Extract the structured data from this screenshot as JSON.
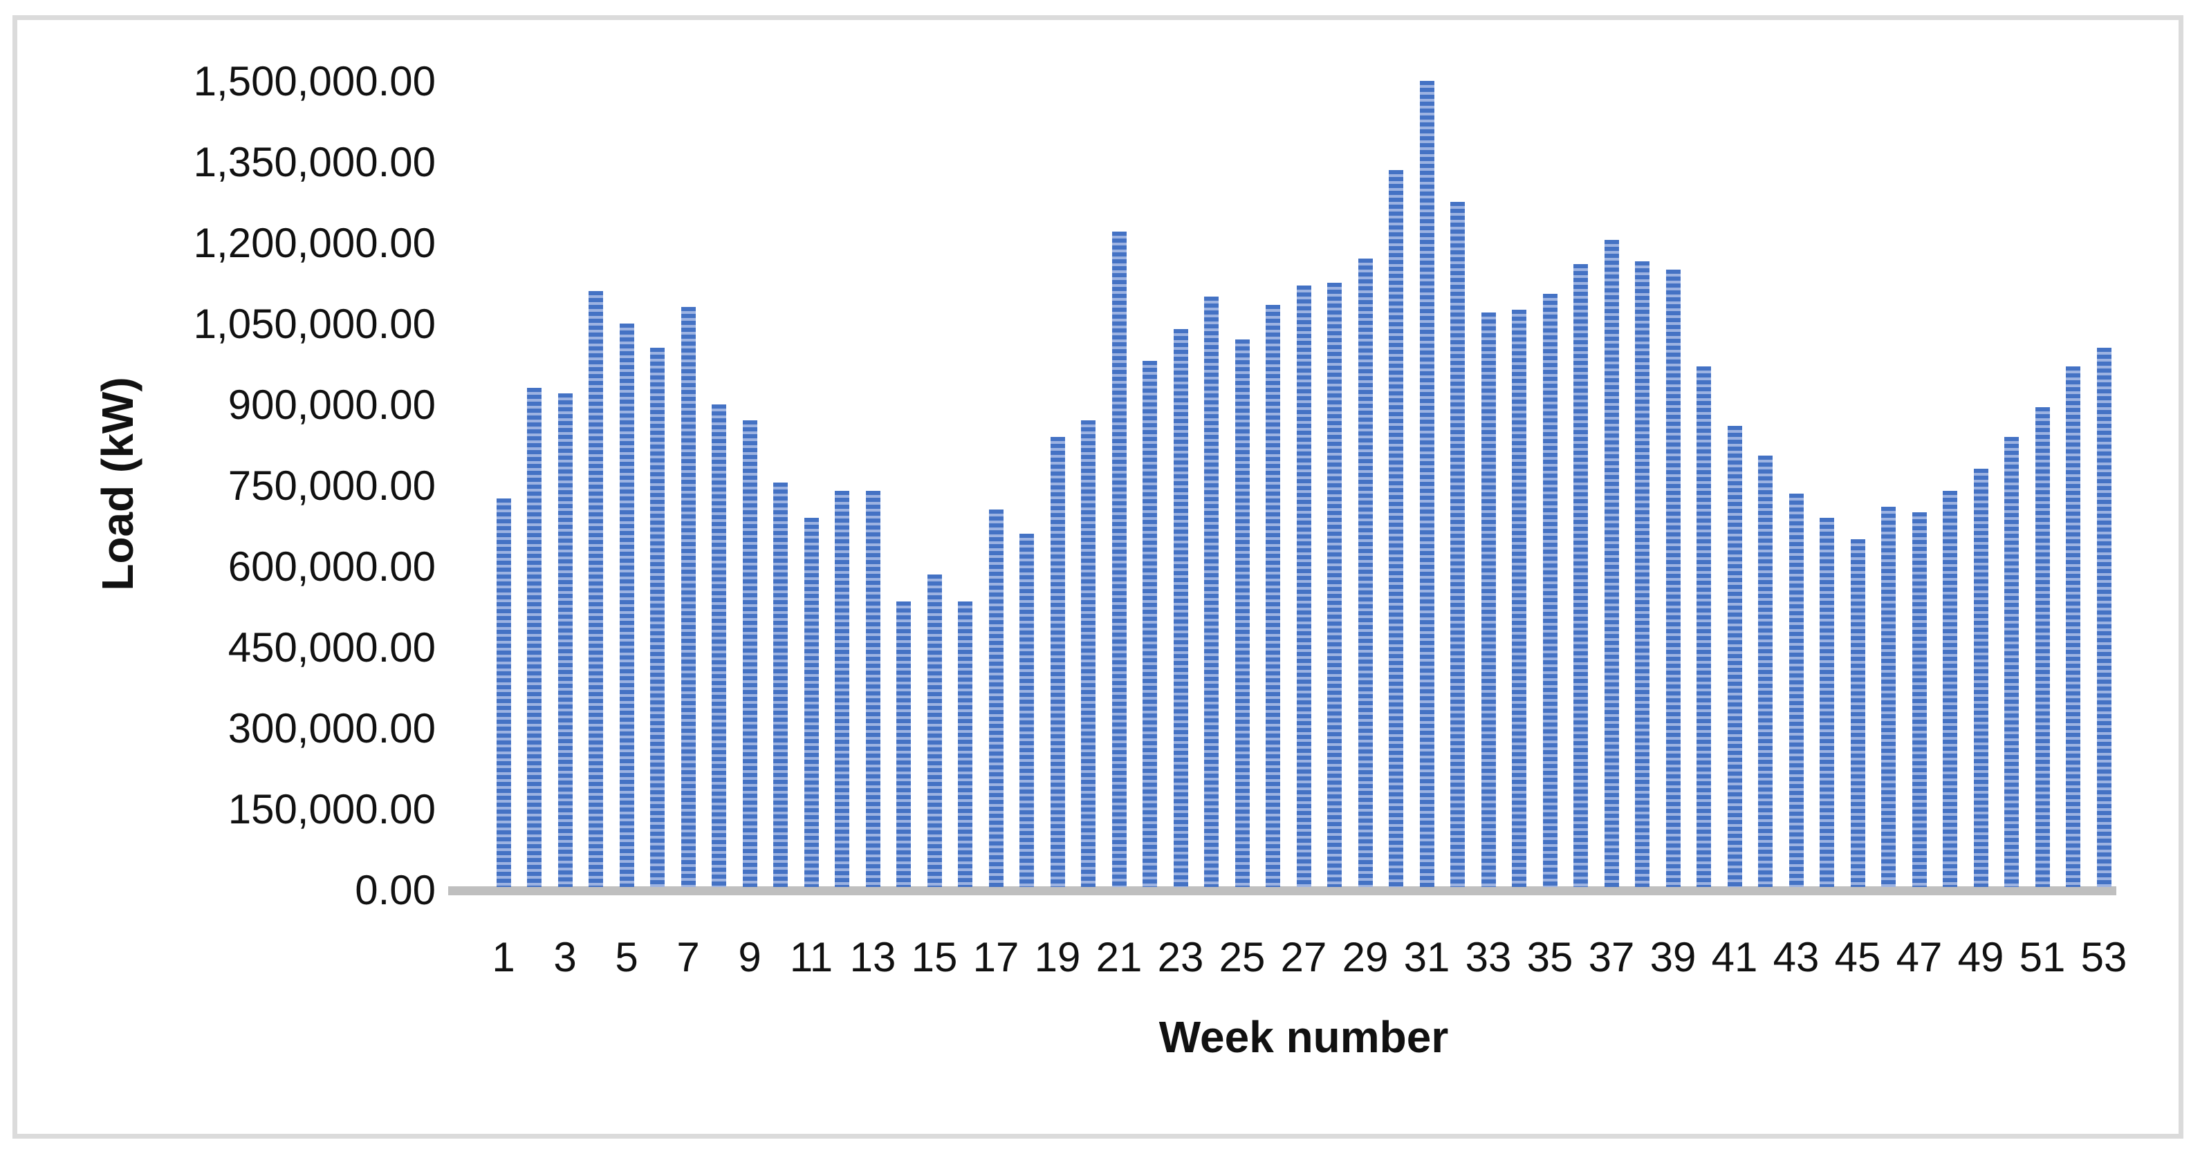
{
  "figure": {
    "y_axis_title": "Load (kW)",
    "x_axis_title": "Week number"
  },
  "colors": {
    "bar_stripe_dark": "#4472C4",
    "bar_stripe_light": "#9DB3E2",
    "axis_line": "#BFBFBF",
    "text": "#111111",
    "frame_border": "#DBDBDB",
    "background": "#FFFFFF"
  },
  "y_axis": {
    "tick_labels_top_to_bottom": [
      "1,500,000.00",
      "1,350,000.00",
      "1,200,000.00",
      "1,050,000.00",
      "900,000.00",
      "750,000.00",
      "600,000.00",
      "450,000.00",
      "300,000.00",
      "150,000.00",
      "0.00"
    ]
  },
  "x_axis": {
    "shown_tick_labels": [
      "1",
      "3",
      "5",
      "7",
      "9",
      "11",
      "13",
      "15",
      "17",
      "19",
      "21",
      "23",
      "25",
      "27",
      "29",
      "31",
      "33",
      "35",
      "37",
      "39",
      "41",
      "43",
      "45",
      "47",
      "49",
      "51",
      "53"
    ]
  },
  "chart_data": {
    "type": "bar",
    "title": "",
    "xlabel": "Week number",
    "ylabel": "Load (kW)",
    "categories": [
      1,
      2,
      3,
      4,
      5,
      6,
      7,
      8,
      9,
      10,
      11,
      12,
      13,
      14,
      15,
      16,
      17,
      18,
      19,
      20,
      21,
      22,
      23,
      24,
      25,
      26,
      27,
      28,
      29,
      30,
      31,
      32,
      33,
      34,
      35,
      36,
      37,
      38,
      39,
      40,
      41,
      42,
      43,
      44,
      45,
      46,
      47,
      48,
      49,
      50,
      51,
      52,
      53
    ],
    "values": [
      720000,
      925000,
      915000,
      1105000,
      1045000,
      1000000,
      1075000,
      895000,
      865000,
      750000,
      685000,
      735000,
      735000,
      530000,
      580000,
      530000,
      700000,
      655000,
      835000,
      865000,
      1215000,
      975000,
      1035000,
      1095000,
      1015000,
      1080000,
      1115000,
      1120000,
      1165000,
      1330000,
      1495000,
      1270000,
      1065000,
      1070000,
      1100000,
      1155000,
      1200000,
      1160000,
      1145000,
      965000,
      855000,
      800000,
      730000,
      685000,
      645000,
      705000,
      695000,
      735000,
      775000,
      835000,
      890000,
      965000,
      1000000
    ],
    "ylim": [
      0,
      1500000
    ],
    "y_tick_interval": 150000,
    "x_tick_label_step": "odd weeks only",
    "grid": false,
    "legend": "none",
    "bar_fill_pattern": "horizontal dashed stripes (dark blue on light blue)"
  }
}
